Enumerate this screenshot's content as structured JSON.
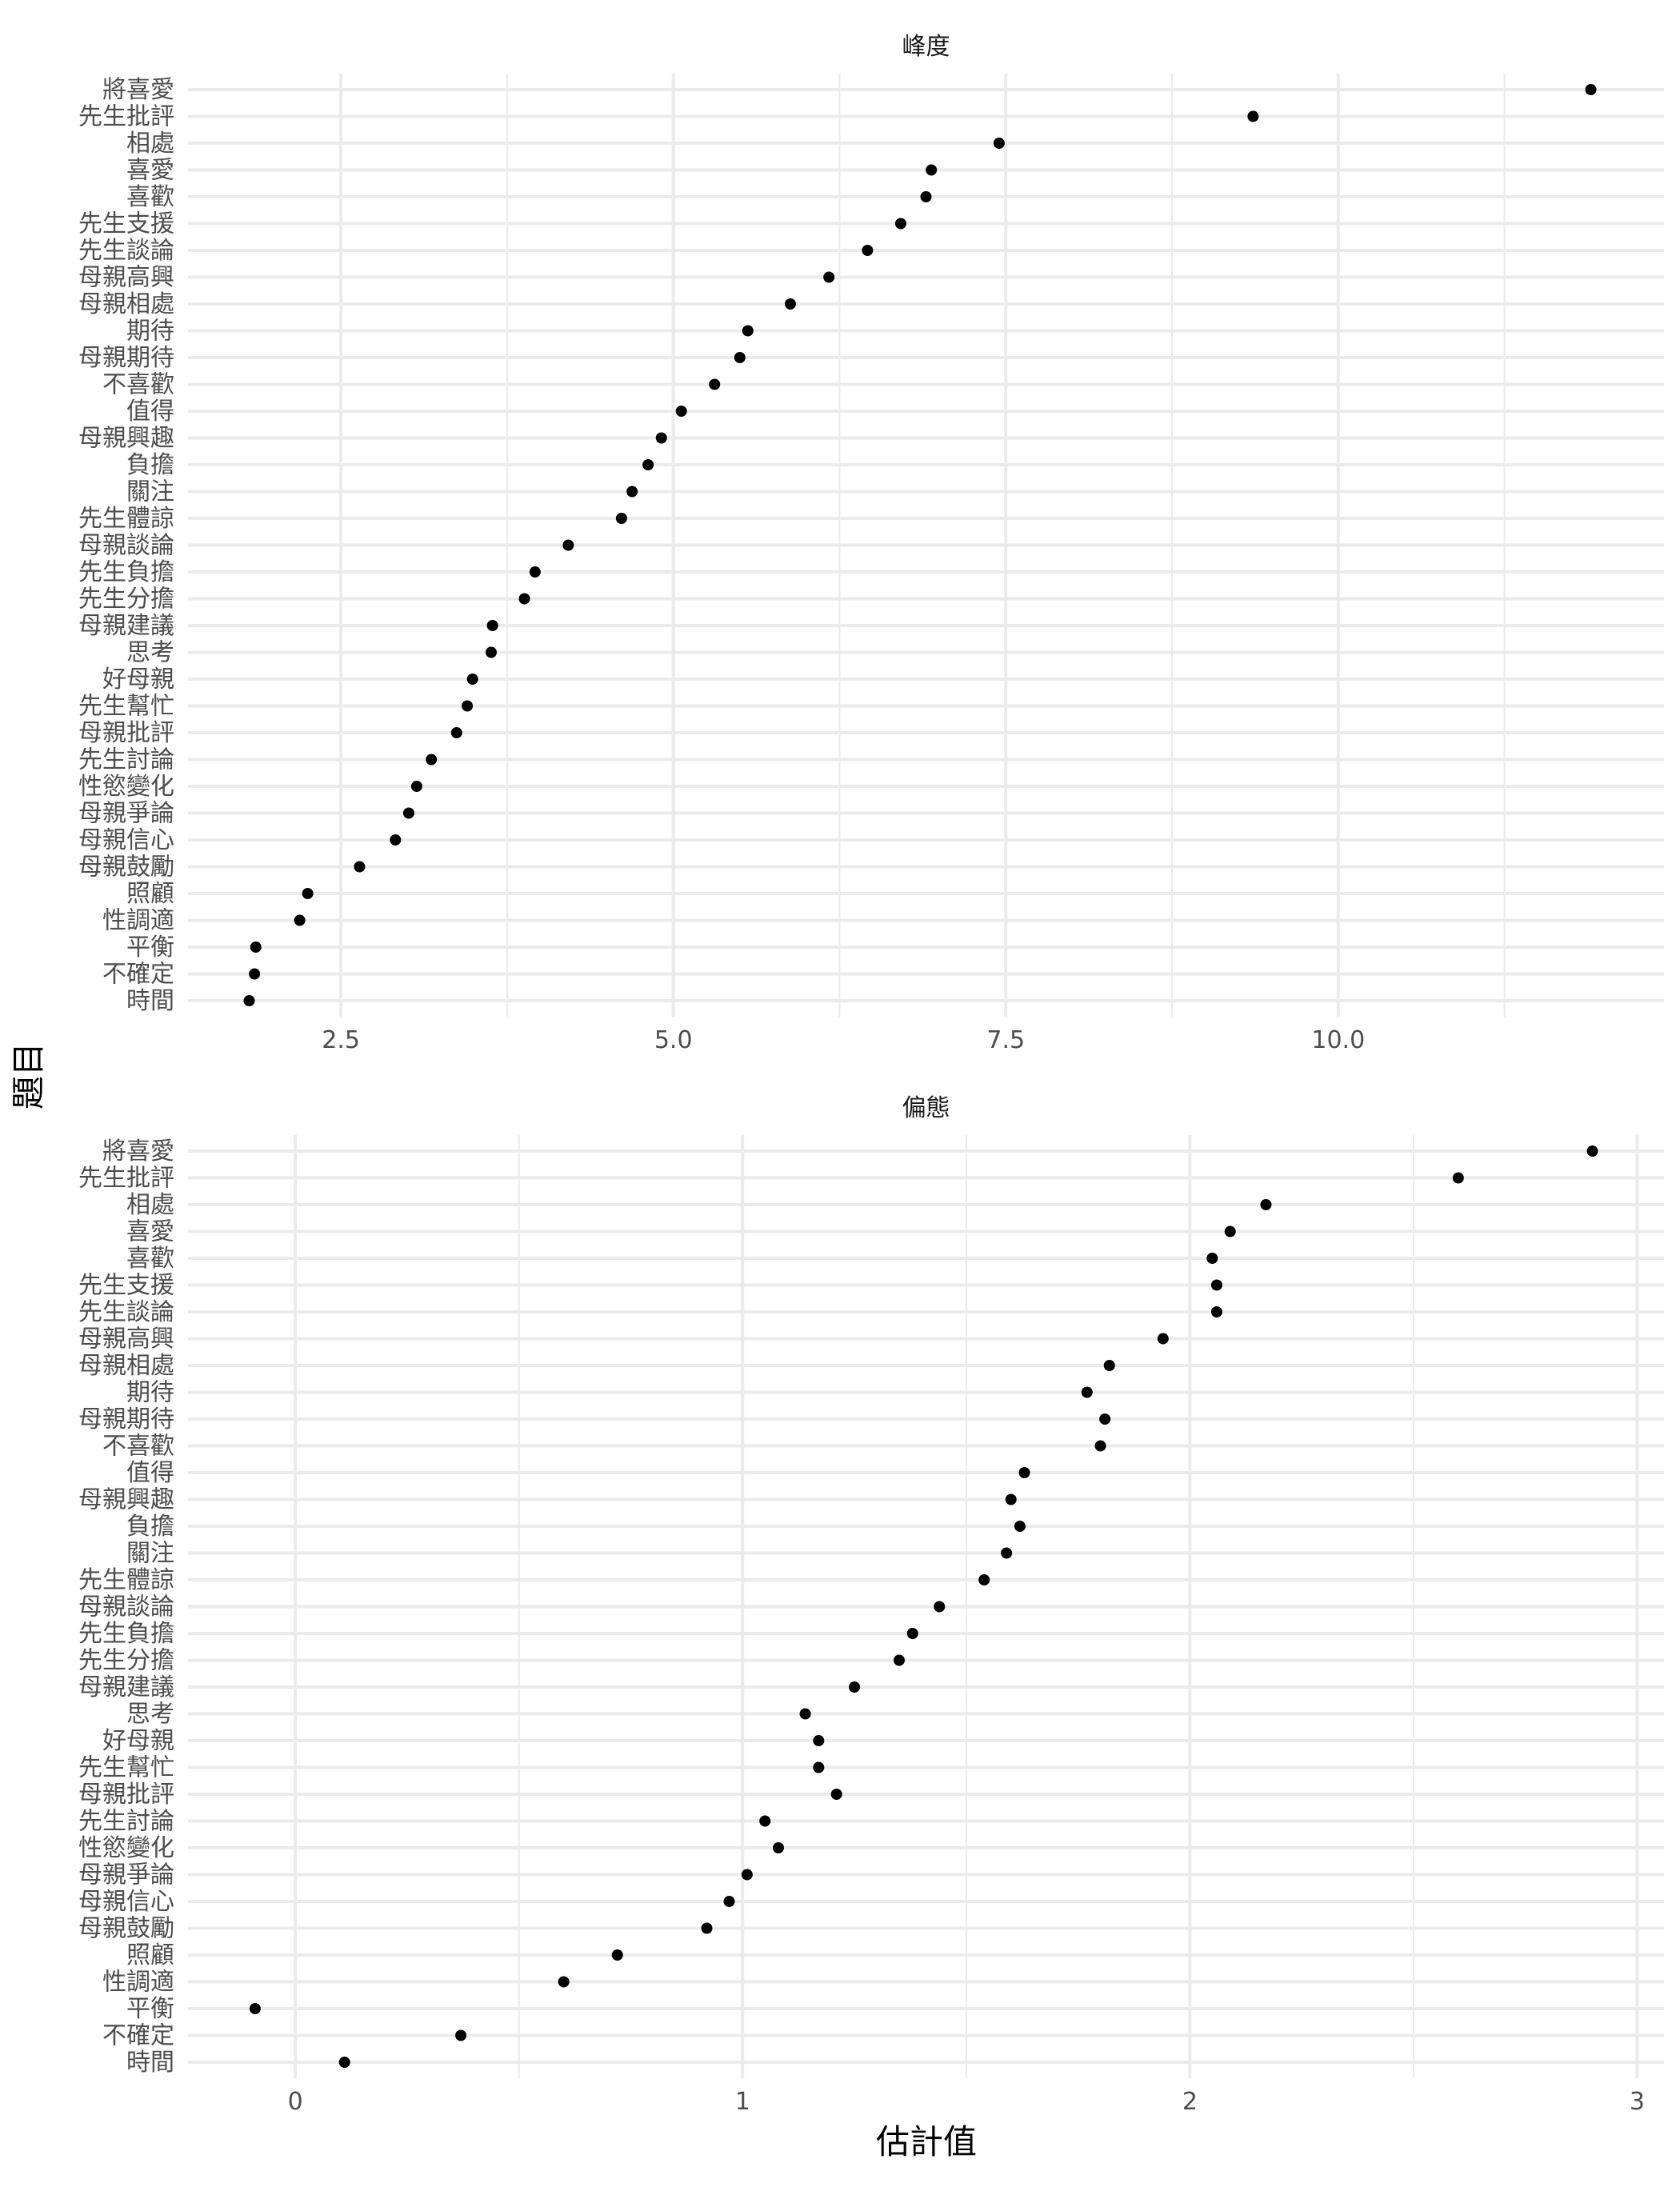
{
  "chart_data": {
    "type": "scatter",
    "ylabel": "題目",
    "xlabel": "估計值",
    "items": [
      "將喜愛",
      "先生批評",
      "相處",
      "喜愛",
      "喜歡",
      "先生支援",
      "先生談論",
      "母親高興",
      "母親相處",
      "期待",
      "母親期待",
      "不喜歡",
      "值得",
      "母親興趣",
      "負擔",
      "關注",
      "先生體諒",
      "母親談論",
      "先生負擔",
      "先生分擔",
      "母親建議",
      "思考",
      "好母親",
      "先生幫忙",
      "母親批評",
      "先生討論",
      "性慾變化",
      "母親爭論",
      "母親信心",
      "母親鼓勵",
      "照顧",
      "性調適",
      "平衡",
      "不確定",
      "時間"
    ],
    "grid": true,
    "panels": [
      {
        "title": "峰度",
        "xlim": [
          1.35,
          12.45
        ],
        "xticks": [
          2.5,
          5.0,
          7.5,
          10.0
        ],
        "xtick_labels": [
          "2.5",
          "5.0",
          "7.5",
          "10.0"
        ],
        "values": [
          11.9,
          9.36,
          7.45,
          6.94,
          6.9,
          6.71,
          6.46,
          6.17,
          5.88,
          5.56,
          5.5,
          5.31,
          5.06,
          4.91,
          4.81,
          4.69,
          4.61,
          4.21,
          3.96,
          3.88,
          3.64,
          3.63,
          3.49,
          3.45,
          3.37,
          3.18,
          3.07,
          3.01,
          2.91,
          2.64,
          2.25,
          2.19,
          1.86,
          1.85,
          1.81
        ]
      },
      {
        "title": "偏態",
        "xlim": [
          -0.24,
          3.06
        ],
        "xticks": [
          0,
          1,
          2,
          3
        ],
        "xtick_labels": [
          "0",
          "1",
          "2",
          "3"
        ],
        "values": [
          2.9,
          2.6,
          2.17,
          2.09,
          2.05,
          2.06,
          2.06,
          1.94,
          1.82,
          1.77,
          1.81,
          1.8,
          1.63,
          1.6,
          1.62,
          1.59,
          1.54,
          1.44,
          1.38,
          1.35,
          1.25,
          1.14,
          1.17,
          1.17,
          1.21,
          1.05,
          1.08,
          1.01,
          0.97,
          0.92,
          0.72,
          0.6,
          -0.09,
          0.37,
          0.11
        ]
      }
    ]
  }
}
